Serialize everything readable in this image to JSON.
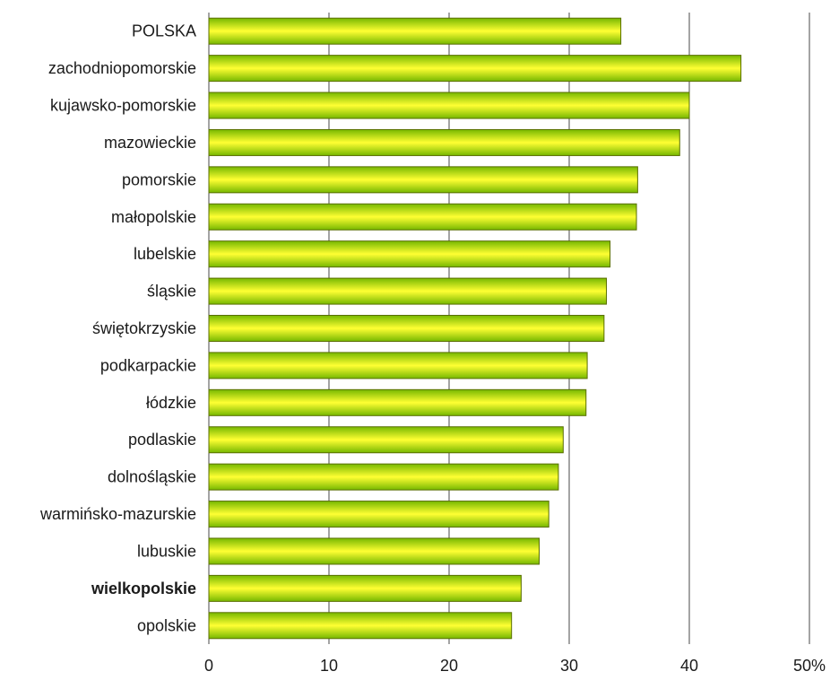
{
  "chart_data": {
    "type": "bar",
    "orientation": "horizontal",
    "categories": [
      "POLSKA",
      "zachodniopomorskie",
      "kujawsko-pomorskie",
      "mazowieckie",
      "pomorskie",
      "małopolskie",
      "lubelskie",
      "śląskie",
      "świętokrzyskie",
      "podkarpackie",
      "łódzkie",
      "podlaskie",
      "dolnośląskie",
      "warmińsko-mazurskie",
      "lubuskie",
      "wielkopolskie",
      "opolskie"
    ],
    "values": [
      34.3,
      44.3,
      40.0,
      39.2,
      35.7,
      35.6,
      33.4,
      33.1,
      32.9,
      31.5,
      31.4,
      29.5,
      29.1,
      28.3,
      27.5,
      26.0,
      25.2
    ],
    "highlight_categories": [
      "wielkopolskie"
    ],
    "xlim": [
      0,
      50
    ],
    "xticks": [
      "0",
      "10",
      "20",
      "30",
      "40",
      "50%"
    ],
    "grid": "vertical",
    "legend": "none",
    "title": "",
    "xlabel": "",
    "ylabel": "",
    "colors": {
      "bar_center": "#ffff33",
      "bar_edge": "#76b800",
      "bar_stroke": "#5a6e00",
      "grid": "#4a4a4a",
      "text": "#1a1a1a"
    }
  }
}
